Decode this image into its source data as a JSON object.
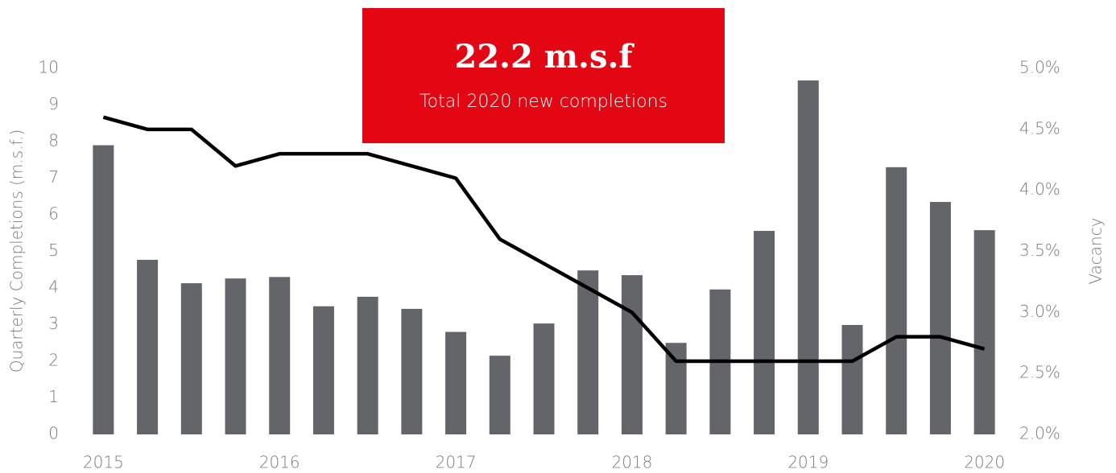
{
  "chart_data": {
    "type": "bar_line",
    "annotation": {
      "headline": "22.2 m.s.f",
      "text": "Total 2020 new completions"
    },
    "y_label": "Quarterly Completions (m.s.f.)",
    "y2_label": "Vacancy",
    "categories": [
      "2015",
      null,
      null,
      null,
      "2016",
      null,
      null,
      null,
      "2017",
      null,
      null,
      null,
      "2018",
      null,
      null,
      null,
      "2019",
      null,
      null,
      null,
      "2020"
    ],
    "series": [
      {
        "type": "bar",
        "color": "#636569",
        "values": [
          7.9,
          4.77,
          4.13,
          4.26,
          4.3,
          3.5,
          3.76,
          3.43,
          2.8,
          2.15,
          3.03,
          4.48,
          4.35,
          2.5,
          3.96,
          5.56,
          9.67,
          2.99,
          7.3,
          6.35,
          5.58
        ]
      },
      {
        "type": "line",
        "axis": "y2",
        "color": "#000000",
        "values": [
          4.6,
          4.5,
          4.5,
          4.2,
          4.3,
          4.3,
          4.3,
          4.2,
          4.1,
          3.6,
          3.4,
          3.2,
          3.0,
          2.6,
          2.6,
          2.6,
          2.6,
          2.6,
          2.8,
          2.8,
          2.7
        ]
      }
    ],
    "ylim": [
      0,
      10
    ],
    "yticks": [
      0,
      1,
      2,
      3,
      4,
      5,
      6,
      7,
      8,
      9,
      10
    ],
    "y2lim": [
      2,
      5
    ],
    "y2ticks": [
      {
        "value": 2,
        "label": "2.0%"
      },
      {
        "value": 2.5,
        "label": "2.5%"
      },
      {
        "value": 3,
        "label": "3.0%"
      },
      {
        "value": 3.5,
        "label": "3.5%"
      },
      {
        "value": 4,
        "label": "4.0%"
      },
      {
        "value": 4.5,
        "label": "4.5%"
      },
      {
        "value": 5,
        "label": "5.0%"
      }
    ],
    "grid": false
  }
}
